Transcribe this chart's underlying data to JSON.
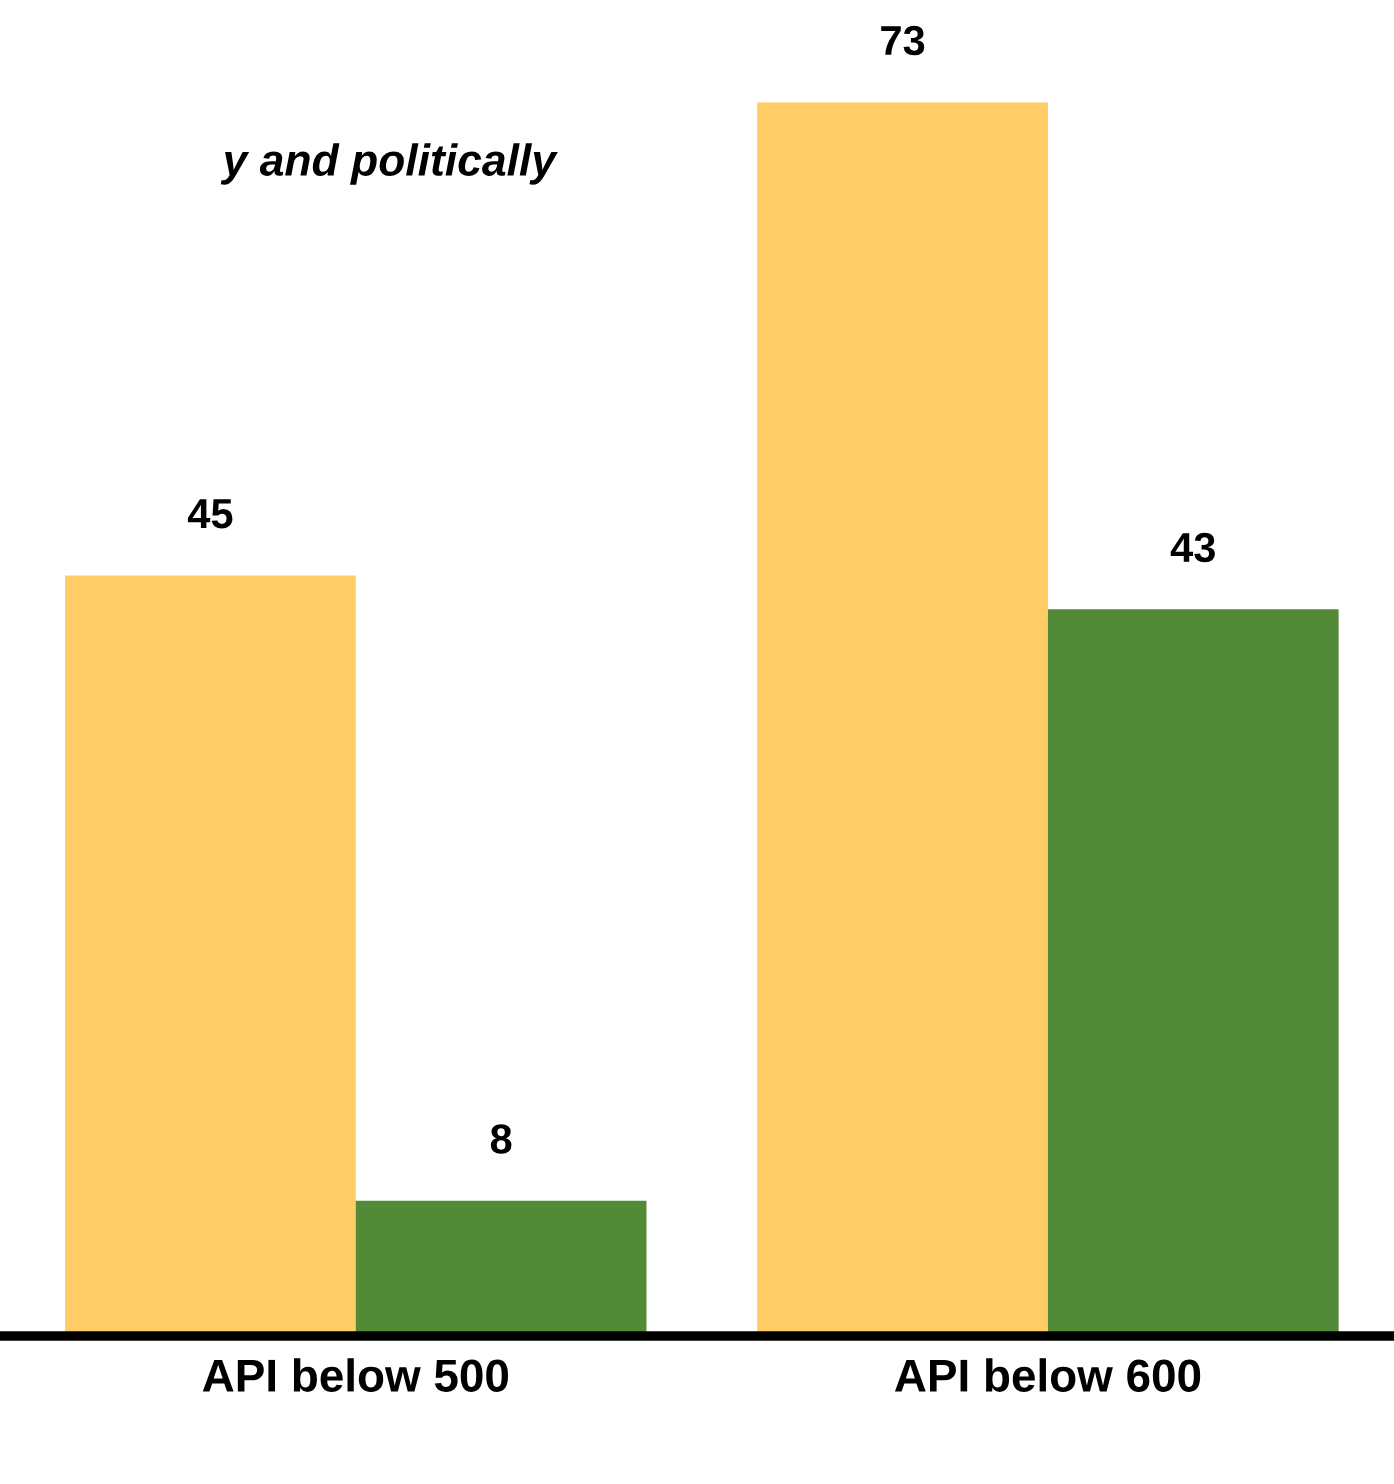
{
  "chart_data": {
    "type": "bar",
    "title": "y and politically",
    "categories": [
      "API below 500",
      "API below 600"
    ],
    "series": [
      {
        "color": "#ffcc66",
        "values": [
          45,
          73
        ]
      },
      {
        "color": "#538a37",
        "values": [
          8,
          43
        ]
      }
    ],
    "data_labels": true,
    "grid": false,
    "legend": false
  }
}
